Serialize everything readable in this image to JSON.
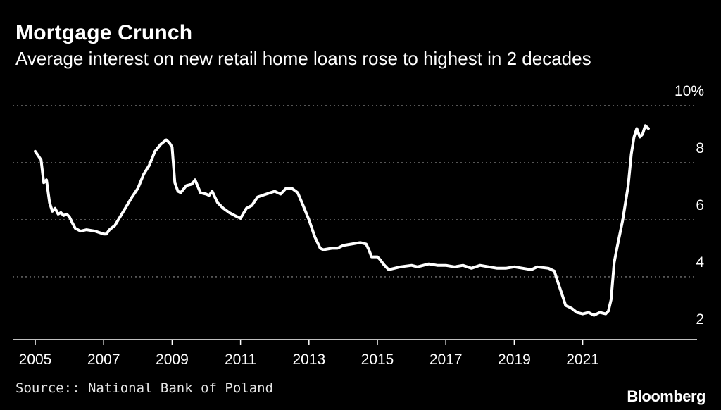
{
  "header": {
    "title": "Mortgage Crunch",
    "subtitle": "Average interest on new retail home loans rose to highest in 2 decades"
  },
  "footer": {
    "source": "Source:: National Bank of Poland",
    "brand": "Bloomberg"
  },
  "colors": {
    "background": "#000000",
    "line": "#ffffff",
    "grid": "#8a8a8a",
    "text": "#ffffff"
  },
  "chart_data": {
    "type": "line",
    "title": "Mortgage Crunch",
    "subtitle": "Average interest on new retail home loans rose to highest in 2 decades",
    "xlabel": "",
    "ylabel": "",
    "xlim": [
      2004.9,
      2023.8
    ],
    "ylim": [
      1.8,
      10.0
    ],
    "y_ticks": [
      2,
      4,
      6,
      8,
      10
    ],
    "y_tick_labels": [
      "2",
      "4",
      "6",
      "8",
      "10%"
    ],
    "x_ticks": [
      2005,
      2007,
      2009,
      2011,
      2013,
      2015,
      2017,
      2019,
      2021
    ],
    "x_tick_labels": [
      "2005",
      "2007",
      "2009",
      "2011",
      "2013",
      "2015",
      "2017",
      "2019",
      "2021"
    ],
    "grid": "horizontal dotted",
    "legend": "none",
    "series": [
      {
        "x": [
          2005.0,
          2005.17,
          2005.25,
          2005.33,
          2005.42,
          2005.5,
          2005.58,
          2005.67,
          2005.75,
          2005.83,
          2005.92,
          2006.0,
          2006.08,
          2006.17,
          2006.33,
          2006.5,
          2006.75,
          2007.0,
          2007.08,
          2007.17,
          2007.33,
          2007.58,
          2007.83,
          2008.0,
          2008.17,
          2008.33,
          2008.5,
          2008.67,
          2008.83,
          2008.92,
          2009.0,
          2009.08,
          2009.17,
          2009.25,
          2009.42,
          2009.58,
          2009.67,
          2009.83,
          2010.0,
          2010.08,
          2010.17,
          2010.33,
          2010.5,
          2010.67,
          2010.83,
          2011.0,
          2011.17,
          2011.33,
          2011.5,
          2011.75,
          2012.0,
          2012.17,
          2012.33,
          2012.5,
          2012.67,
          2012.83,
          2013.0,
          2013.17,
          2013.33,
          2013.42,
          2013.67,
          2013.83,
          2014.0,
          2014.25,
          2014.5,
          2014.67,
          2014.75,
          2014.83,
          2015.0,
          2015.08,
          2015.17,
          2015.33,
          2015.5,
          2015.67,
          2016.0,
          2016.17,
          2016.5,
          2016.75,
          2017.0,
          2017.25,
          2017.5,
          2017.75,
          2018.0,
          2018.5,
          2018.75,
          2019.0,
          2019.25,
          2019.5,
          2019.67,
          2020.0,
          2020.17,
          2020.25,
          2020.42,
          2020.5,
          2020.67,
          2020.83,
          2021.0,
          2021.17,
          2021.33,
          2021.5,
          2021.67,
          2021.75,
          2021.83,
          2021.92,
          2022.0,
          2022.17,
          2022.33,
          2022.42,
          2022.5,
          2022.58,
          2022.67,
          2022.75,
          2022.83,
          2022.92
        ],
        "values": [
          8.4,
          8.1,
          7.3,
          7.4,
          6.6,
          6.3,
          6.4,
          6.2,
          6.25,
          6.15,
          6.2,
          6.1,
          5.9,
          5.7,
          5.6,
          5.65,
          5.6,
          5.5,
          5.5,
          5.65,
          5.8,
          6.3,
          6.8,
          7.1,
          7.6,
          7.9,
          8.4,
          8.65,
          8.8,
          8.7,
          8.55,
          7.3,
          7.0,
          6.95,
          7.2,
          7.25,
          7.4,
          6.95,
          6.9,
          6.85,
          7.0,
          6.6,
          6.4,
          6.25,
          6.15,
          6.05,
          6.4,
          6.5,
          6.8,
          6.9,
          7.0,
          6.9,
          7.1,
          7.1,
          6.95,
          6.5,
          6.0,
          5.4,
          5.0,
          4.95,
          5.0,
          5.0,
          5.1,
          5.15,
          5.2,
          5.15,
          4.95,
          4.7,
          4.7,
          4.6,
          4.45,
          4.25,
          4.3,
          4.35,
          4.4,
          4.35,
          4.45,
          4.4,
          4.4,
          4.35,
          4.4,
          4.3,
          4.4,
          4.3,
          4.3,
          4.35,
          4.3,
          4.25,
          4.35,
          4.3,
          4.2,
          3.9,
          3.3,
          3.0,
          2.9,
          2.75,
          2.7,
          2.75,
          2.65,
          2.75,
          2.7,
          2.8,
          3.2,
          4.5,
          5.0,
          6.0,
          7.2,
          8.3,
          8.9,
          9.2,
          8.9,
          9.0,
          9.3,
          9.2
        ]
      }
    ]
  }
}
